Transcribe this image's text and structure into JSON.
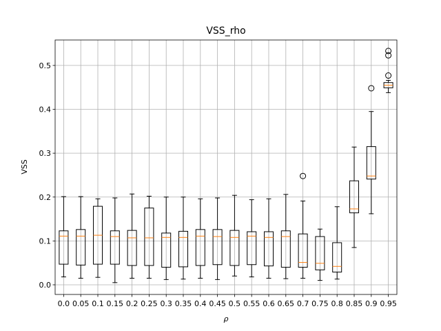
{
  "chart_data": {
    "type": "box",
    "title": "VSS_rho",
    "xlabel": "ρ",
    "ylabel": "VSS",
    "categories": [
      "0.0",
      "0.05",
      "0.1",
      "0.15",
      "0.2",
      "0.25",
      "0.3",
      "0.35",
      "0.4",
      "0.45",
      "0.5",
      "0.55",
      "0.6",
      "0.65",
      "0.7",
      "0.75",
      "0.8",
      "0.85",
      "0.9",
      "0.95"
    ],
    "ylim": [
      -0.022,
      0.558
    ],
    "yticks": [
      0.0,
      0.1,
      0.2,
      0.3,
      0.4,
      0.5
    ],
    "grid": true,
    "colors": {
      "median": "#ff7f0e",
      "box": "#000000",
      "grid": "#b0b0b0"
    },
    "boxes": [
      {
        "whislo": 0.018,
        "q1": 0.047,
        "med": 0.111,
        "q3": 0.123,
        "whishi": 0.201,
        "fliers": []
      },
      {
        "whislo": 0.015,
        "q1": 0.045,
        "med": 0.111,
        "q3": 0.126,
        "whishi": 0.201,
        "fliers": []
      },
      {
        "whislo": 0.017,
        "q1": 0.047,
        "med": 0.113,
        "q3": 0.179,
        "whishi": 0.196,
        "fliers": []
      },
      {
        "whislo": 0.005,
        "q1": 0.047,
        "med": 0.11,
        "q3": 0.123,
        "whishi": 0.198,
        "fliers": []
      },
      {
        "whislo": 0.015,
        "q1": 0.044,
        "med": 0.107,
        "q3": 0.124,
        "whishi": 0.207,
        "fliers": []
      },
      {
        "whislo": 0.015,
        "q1": 0.044,
        "med": 0.107,
        "q3": 0.175,
        "whishi": 0.202,
        "fliers": []
      },
      {
        "whislo": 0.012,
        "q1": 0.04,
        "med": 0.108,
        "q3": 0.118,
        "whishi": 0.2,
        "fliers": []
      },
      {
        "whislo": 0.013,
        "q1": 0.041,
        "med": 0.108,
        "q3": 0.122,
        "whishi": 0.2,
        "fliers": []
      },
      {
        "whislo": 0.015,
        "q1": 0.044,
        "med": 0.111,
        "q3": 0.126,
        "whishi": 0.196,
        "fliers": []
      },
      {
        "whislo": 0.012,
        "q1": 0.046,
        "med": 0.11,
        "q3": 0.126,
        "whishi": 0.198,
        "fliers": []
      },
      {
        "whislo": 0.02,
        "q1": 0.044,
        "med": 0.108,
        "q3": 0.124,
        "whishi": 0.204,
        "fliers": []
      },
      {
        "whislo": 0.018,
        "q1": 0.046,
        "med": 0.111,
        "q3": 0.121,
        "whishi": 0.194,
        "fliers": []
      },
      {
        "whislo": 0.015,
        "q1": 0.043,
        "med": 0.108,
        "q3": 0.121,
        "whishi": 0.196,
        "fliers": []
      },
      {
        "whislo": 0.014,
        "q1": 0.04,
        "med": 0.11,
        "q3": 0.123,
        "whishi": 0.206,
        "fliers": []
      },
      {
        "whislo": 0.015,
        "q1": 0.04,
        "med": 0.051,
        "q3": 0.116,
        "whishi": 0.191,
        "fliers": [
          0.248
        ]
      },
      {
        "whislo": 0.01,
        "q1": 0.034,
        "med": 0.049,
        "q3": 0.11,
        "whishi": 0.127,
        "fliers": []
      },
      {
        "whislo": 0.013,
        "q1": 0.029,
        "med": 0.042,
        "q3": 0.096,
        "whishi": 0.178,
        "fliers": []
      },
      {
        "whislo": 0.085,
        "q1": 0.164,
        "med": 0.173,
        "q3": 0.237,
        "whishi": 0.314,
        "fliers": []
      },
      {
        "whislo": 0.162,
        "q1": 0.241,
        "med": 0.248,
        "q3": 0.315,
        "whishi": 0.395,
        "fliers": [
          0.448
        ]
      },
      {
        "whislo": 0.438,
        "q1": 0.449,
        "med": 0.455,
        "q3": 0.461,
        "whishi": 0.466,
        "fliers": [
          0.477,
          0.523,
          0.533
        ]
      }
    ]
  }
}
